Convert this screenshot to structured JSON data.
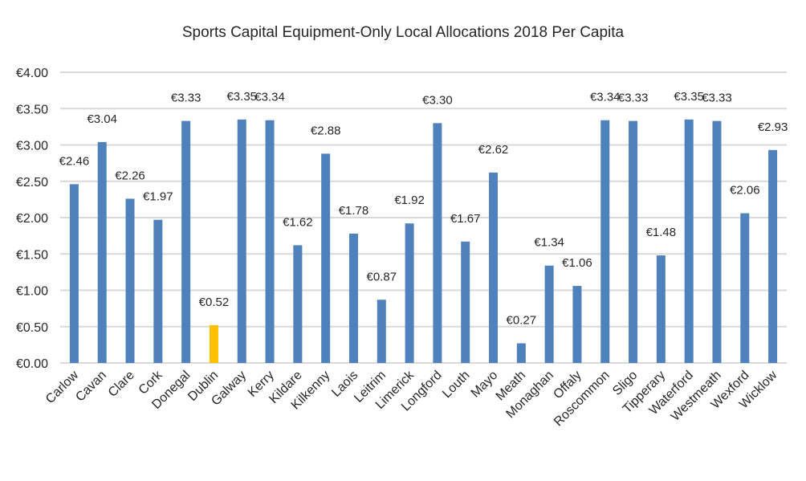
{
  "chart_data": {
    "type": "bar",
    "title": "Sports Capital Equipment-Only Local Allocations 2018 Per Capita",
    "xlabel": "",
    "ylabel": "",
    "ylim": [
      0,
      4
    ],
    "yticks": [
      0,
      0.5,
      1,
      1.5,
      2,
      2.5,
      3,
      3.5,
      4
    ],
    "ytick_labels": [
      "€0.00",
      "€0.50",
      "€1.00",
      "€1.50",
      "€2.00",
      "€2.50",
      "€3.00",
      "€3.50",
      "€4.00"
    ],
    "grid": true,
    "legend": "none",
    "categories": [
      "Carlow",
      "Cavan",
      "Clare",
      "Cork",
      "Donegal",
      "Dublin",
      "Galway",
      "Kerry",
      "Kildare",
      "Kilkenny",
      "Laois",
      "Leitrim",
      "Limerick",
      "Longford",
      "Louth",
      "Mayo",
      "Meath",
      "Monaghan",
      "Offaly",
      "Roscommon",
      "Sligo",
      "Tipperary",
      "Waterford",
      "Westmeath",
      "Wexford",
      "Wicklow"
    ],
    "values": [
      2.46,
      3.04,
      2.26,
      1.97,
      3.33,
      0.52,
      3.35,
      3.34,
      1.62,
      2.88,
      1.78,
      0.87,
      1.92,
      3.3,
      1.67,
      2.62,
      0.27,
      1.34,
      1.06,
      3.34,
      3.33,
      1.48,
      3.35,
      3.33,
      2.06,
      2.93
    ],
    "data_labels": [
      "€2.46",
      "€3.04",
      "€2.26",
      "€1.97",
      "€3.33",
      "€0.52",
      "€3.35",
      "€3.34",
      "€1.62",
      "€2.88",
      "€1.78",
      "€0.87",
      "€1.92",
      "€3.30",
      "€1.67",
      "€2.62",
      "€0.27",
      "€1.34",
      "€1.06",
      "€3.34",
      "€3.33",
      "€1.48",
      "€3.35",
      "€3.33",
      "€2.06",
      "€2.93"
    ],
    "colors": {
      "default_bar": "#4f81bd",
      "highlight_bar": "#ffc000",
      "gridline": "#d9d9d9",
      "text": "#262626"
    },
    "highlight_category": "Dublin"
  }
}
